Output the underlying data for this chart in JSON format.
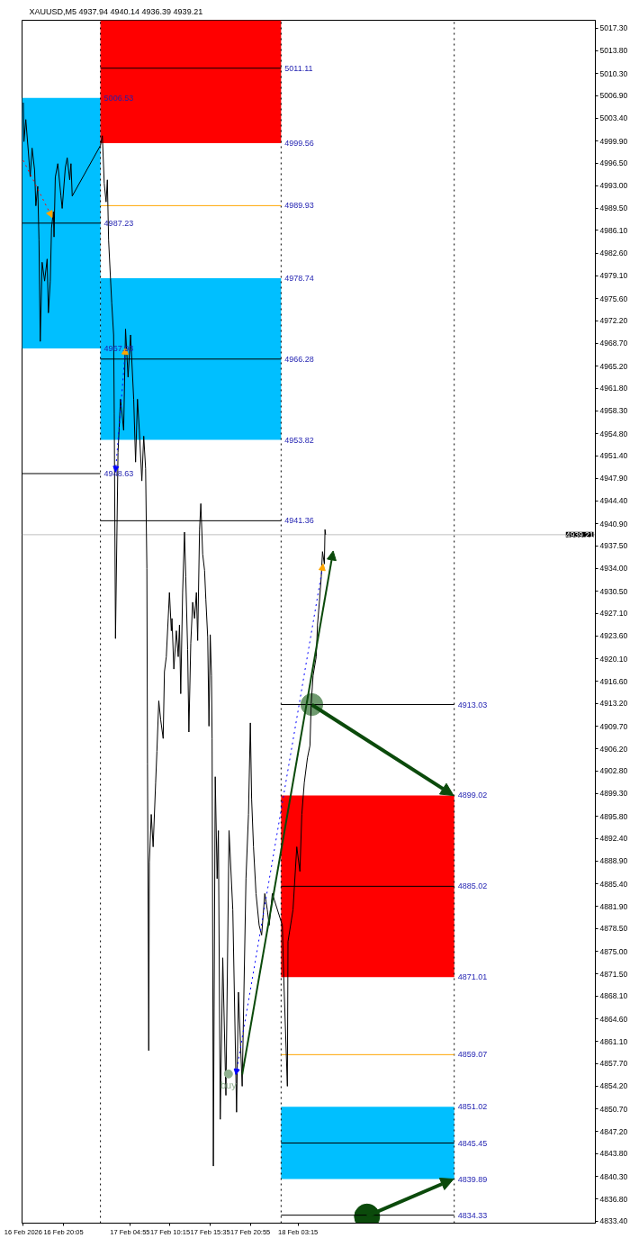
{
  "chart_data": {
    "type": "line",
    "title": "XAUUSD,M5 4937.94 4940.14 4936.39 4939.21",
    "xlim": [
      "2026-02-16T14:35",
      "2026-02-19T18:45"
    ],
    "ylim": [
      4833.1,
      5018.5
    ],
    "xticks": [
      {
        "value": "2026-02-16T14:45",
        "label": "16 Feb 2026"
      },
      {
        "value": "2026-02-16T20:05",
        "label": "16 Feb 20:05"
      },
      {
        "value": "2026-02-17T04:55",
        "label": "17 Feb 04:55"
      },
      {
        "value": "2026-02-17T10:15",
        "label": "17 Feb 10:15"
      },
      {
        "value": "2026-02-17T15:35",
        "label": "17 Feb 15:35"
      },
      {
        "value": "2026-02-17T20:55",
        "label": "17 Feb 20:55"
      },
      {
        "value": "2026-02-18T03:15",
        "label": "18 Feb 03:15"
      }
    ],
    "yticks": [
      {
        "value": 5017.3,
        "label": "5017.30"
      },
      {
        "value": 5013.8,
        "label": "5013.80"
      },
      {
        "value": 5010.3,
        "label": "5010.30"
      },
      {
        "value": 5006.9,
        "label": "5006.90"
      },
      {
        "value": 5003.4,
        "label": "5003.40"
      },
      {
        "value": 4999.9,
        "label": "4999.90"
      },
      {
        "value": 4996.5,
        "label": "4996.50"
      },
      {
        "value": 4993.0,
        "label": "4993.00"
      },
      {
        "value": 4989.5,
        "label": "4989.50"
      },
      {
        "value": 4986.1,
        "label": "4986.10"
      },
      {
        "value": 4982.6,
        "label": "4982.60"
      },
      {
        "value": 4979.1,
        "label": "4979.10"
      },
      {
        "value": 4975.6,
        "label": "4975.60"
      },
      {
        "value": 4972.2,
        "label": "4972.20"
      },
      {
        "value": 4968.7,
        "label": "4968.70"
      },
      {
        "value": 4965.2,
        "label": "4965.20"
      },
      {
        "value": 4961.8,
        "label": "4961.80"
      },
      {
        "value": 4958.3,
        "label": "4958.30"
      },
      {
        "value": 4954.8,
        "label": "4954.80"
      },
      {
        "value": 4951.4,
        "label": "4951.40"
      },
      {
        "value": 4947.9,
        "label": "4947.90"
      },
      {
        "value": 4944.4,
        "label": "4944.40"
      },
      {
        "value": 4940.9,
        "label": "4940.90"
      },
      {
        "value": 4937.5,
        "label": "4937.50"
      },
      {
        "value": 4934.0,
        "label": "4934.00"
      },
      {
        "value": 4930.5,
        "label": "4930.50"
      },
      {
        "value": 4927.1,
        "label": "4927.10"
      },
      {
        "value": 4923.6,
        "label": "4923.60"
      },
      {
        "value": 4920.1,
        "label": "4920.10"
      },
      {
        "value": 4916.6,
        "label": "4916.60"
      },
      {
        "value": 4913.2,
        "label": "4913.20"
      },
      {
        "value": 4909.7,
        "label": "4909.70"
      },
      {
        "value": 4906.2,
        "label": "4906.20"
      },
      {
        "value": 4902.8,
        "label": "4902.80"
      },
      {
        "value": 4899.3,
        "label": "4899.30"
      },
      {
        "value": 4895.8,
        "label": "4895.80"
      },
      {
        "value": 4892.4,
        "label": "4892.40"
      },
      {
        "value": 4888.9,
        "label": "4888.90"
      },
      {
        "value": 4885.4,
        "label": "4885.40"
      },
      {
        "value": 4881.9,
        "label": "4881.90"
      },
      {
        "value": 4878.5,
        "label": "4878.50"
      },
      {
        "value": 4875.0,
        "label": "4875.00"
      },
      {
        "value": 4871.5,
        "label": "4871.50"
      },
      {
        "value": 4868.1,
        "label": "4868.10"
      },
      {
        "value": 4864.6,
        "label": "4864.60"
      },
      {
        "value": 4861.1,
        "label": "4861.10"
      },
      {
        "value": 4857.7,
        "label": "4857.70"
      },
      {
        "value": 4854.2,
        "label": "4854.20"
      },
      {
        "value": 4850.7,
        "label": "4850.70"
      },
      {
        "value": 4847.2,
        "label": "4847.20"
      },
      {
        "value": 4843.8,
        "label": "4843.80"
      },
      {
        "value": 4840.3,
        "label": "4840.30"
      },
      {
        "value": 4836.8,
        "label": "4836.80"
      },
      {
        "value": 4833.4,
        "label": "4833.40"
      }
    ],
    "ref_lines": [
      {
        "axis": "x",
        "value": "2026-02-17T01:00",
        "color": "#000000",
        "line_style": "dotted"
      },
      {
        "axis": "x",
        "value": "2026-02-18T01:00",
        "color": "#000000",
        "line_style": "dotted"
      },
      {
        "axis": "x",
        "value": "2026-02-19T00:00",
        "color": "#000000",
        "line_style": "dotted"
      },
      {
        "axis": "y",
        "value": 4939.21,
        "label": "4939.21",
        "color": "#c0c0c0"
      }
    ],
    "annotations": [
      {
        "text": "5006.53",
        "x": "2026-02-17T01:00",
        "y": 5006.53
      },
      {
        "text": "4967.93",
        "x": "2026-02-17T01:00",
        "y": 4967.93
      },
      {
        "text": "4999.56",
        "x": "2026-02-18T01:00",
        "y": 4999.56
      },
      {
        "text": "4978.74",
        "x": "2026-02-18T01:00",
        "y": 4978.74
      },
      {
        "text": "4953.82",
        "x": "2026-02-18T01:00",
        "y": 4953.82
      },
      {
        "text": "4899.02",
        "x": "2026-02-19T00:00",
        "y": 4899.02
      },
      {
        "text": "4871.01",
        "x": "2026-02-19T00:00",
        "y": 4871.01
      },
      {
        "text": "4851.02",
        "x": "2026-02-19T00:00",
        "y": 4851.02
      },
      {
        "text": "4839.89",
        "x": "2026-02-19T00:00",
        "y": 4839.89
      }
    ],
    "series": [
      {
        "type": "line",
        "color": "#000000",
        "colors": [
          "#00bfff",
          "#00bfff"
        ],
        "x": [
          "2026-02-16T14:35",
          "2026-02-17T01:00"
        ],
        "values": [
          4987.23,
          4987.23
        ],
        "lower": [
          4967.93,
          4967.93
        ],
        "upper": [
          5006.53,
          5006.53
        ],
        "value_labels": [
          null,
          "4987.23"
        ]
      },
      {
        "type": "line",
        "color": "#000000",
        "colors": [
          "#ff0000",
          "#ff0000"
        ],
        "x": [
          "2026-02-17T01:00",
          "2026-02-18T01:00"
        ],
        "values": [
          5011.11,
          5011.11
        ],
        "lower": [
          4999.56,
          4999.56
        ],
        "upper": [
          5018.5,
          5018.5
        ],
        "value_labels": [
          null,
          "5011.11"
        ]
      },
      {
        "type": "line",
        "color": "#000000",
        "colors": [
          "#00bfff",
          "#00bfff"
        ],
        "x": [
          "2026-02-17T01:00",
          "2026-02-18T01:00"
        ],
        "values": [
          4966.28,
          4966.28
        ],
        "lower": [
          4953.82,
          4953.82
        ],
        "upper": [
          4978.74,
          4978.74
        ],
        "value_labels": [
          null,
          "4966.28"
        ]
      },
      {
        "type": "line",
        "color": "#000000",
        "colors": [
          "#ff0000",
          "#ff0000"
        ],
        "x": [
          "2026-02-18T01:00",
          "2026-02-19T00:00"
        ],
        "values": [
          4885.02,
          4885.02
        ],
        "lower": [
          4871.01,
          4871.01
        ],
        "upper": [
          4899.02,
          4899.02
        ],
        "value_labels": [
          null,
          "4885.02"
        ]
      },
      {
        "type": "line",
        "color": "#000000",
        "colors": [
          "#00bfff",
          "#00bfff"
        ],
        "x": [
          "2026-02-18T01:00",
          "2026-02-19T00:00"
        ],
        "values": [
          4845.45,
          4845.45
        ],
        "lower": [
          4839.89,
          4839.89
        ],
        "upper": [
          4851.02,
          4851.02
        ],
        "value_labels": [
          null,
          "4845.45"
        ]
      },
      {
        "type": "bubble",
        "colors": [
          "#6f9a6f",
          "#0b4a0b"
        ],
        "x": [
          "2026-02-18T05:05",
          "2026-02-18T12:25"
        ],
        "values": [
          4913.03,
          4834.1
        ],
        "sizes": [
          0.75,
          1
        ]
      },
      {
        "type": "line",
        "color": "#000000",
        "x": [
          "2026-02-16T14:35",
          "2026-02-17T01:00"
        ],
        "values": [
          4948.63,
          4948.63
        ],
        "value_labels": [
          null,
          "4948.63"
        ]
      },
      {
        "type": "line",
        "color": "#ffa500",
        "x": [
          "2026-02-17T01:00",
          "2026-02-18T01:00"
        ],
        "values": [
          4989.93,
          4989.93
        ],
        "value_labels": [
          null,
          "4989.93"
        ]
      },
      {
        "type": "line",
        "color": "#000000",
        "x": [
          "2026-02-17T01:00",
          "2026-02-18T01:00"
        ],
        "values": [
          4941.36,
          4941.36
        ],
        "value_labels": [
          null,
          "4941.36"
        ]
      },
      {
        "type": "line",
        "color": "#000000",
        "x": [
          "2026-02-18T01:00",
          "2026-02-19T00:00"
        ],
        "values": [
          4913.03,
          4913.03
        ],
        "value_labels": [
          null,
          "4913.03"
        ]
      },
      {
        "type": "line",
        "color": "#ffa500",
        "x": [
          "2026-02-18T01:00",
          "2026-02-19T00:00"
        ],
        "values": [
          4859.07,
          4859.07
        ],
        "value_labels": [
          null,
          "4859.07"
        ]
      },
      {
        "type": "line",
        "color": "#000000",
        "x": [
          "2026-02-18T01:00",
          "2026-02-19T00:00"
        ],
        "values": [
          4834.33,
          4834.33
        ],
        "value_labels": [
          null,
          "4834.33"
        ]
      },
      {
        "color": "#000000",
        "x": [
          "2026-02-16T14:45",
          "2026-02-16T14:50",
          "2026-02-16T15:05",
          "2026-02-16T15:25",
          "2026-02-16T15:40",
          "2026-02-16T15:55",
          "2026-02-16T16:15",
          "2026-02-16T16:25",
          "2026-02-16T16:40",
          "2026-02-16T16:50",
          "2026-02-16T17:00",
          "2026-02-16T17:15",
          "2026-02-16T17:35",
          "2026-02-16T17:55",
          "2026-02-16T18:05",
          "2026-02-16T18:20",
          "2026-02-16T18:30",
          "2026-02-16T18:45",
          "2026-02-16T18:50",
          "2026-02-16T19:00",
          "2026-02-16T19:20",
          "2026-02-16T19:45",
          "2026-02-16T19:55",
          "2026-02-16T20:20",
          "2026-02-16T20:35",
          "2026-02-16T20:55",
          "2026-02-16T21:05",
          "2026-02-16T21:15",
          "2026-02-17T01:00",
          "2026-02-17T01:15",
          "2026-02-17T01:30",
          "2026-02-17T01:45",
          "2026-02-17T01:55",
          "2026-02-17T02:05",
          "2026-02-17T02:20",
          "2026-02-17T02:30",
          "2026-02-17T02:45",
          "2026-02-17T02:50",
          "2026-02-17T03:00",
          "2026-02-17T03:20",
          "2026-02-17T03:40",
          "2026-02-17T04:05",
          "2026-02-17T04:20",
          "2026-02-17T04:40",
          "2026-02-17T05:00",
          "2026-02-17T05:25",
          "2026-02-17T05:40",
          "2026-02-17T05:55",
          "2026-02-17T06:10",
          "2026-02-17T06:30",
          "2026-02-17T06:45",
          "2026-02-17T07:00",
          "2026-02-17T07:10",
          "2026-02-17T07:15",
          "2026-02-17T07:25",
          "2026-02-17T07:30",
          "2026-02-17T07:45",
          "2026-02-17T08:00",
          "2026-02-17T08:20",
          "2026-02-17T08:30",
          "2026-02-17T08:45",
          "2026-02-17T09:00",
          "2026-02-17T09:20",
          "2026-02-17T09:30",
          "2026-02-17T09:45",
          "2026-02-17T10:00",
          "2026-02-17T10:10",
          "2026-02-17T10:25",
          "2026-02-17T10:30",
          "2026-02-17T10:45",
          "2026-02-17T11:05",
          "2026-02-17T11:20",
          "2026-02-17T11:30",
          "2026-02-17T11:40",
          "2026-02-17T11:55",
          "2026-02-17T12:10",
          "2026-02-17T12:20",
          "2026-02-17T12:35",
          "2026-02-17T12:45",
          "2026-02-17T13:00",
          "2026-02-17T13:15",
          "2026-02-17T13:30",
          "2026-02-17T13:45",
          "2026-02-17T13:55",
          "2026-02-17T14:10",
          "2026-02-17T14:20",
          "2026-02-17T14:35",
          "2026-02-17T14:50",
          "2026-02-17T15:00",
          "2026-02-17T15:15",
          "2026-02-17T15:25",
          "2026-02-17T15:35",
          "2026-02-17T15:45",
          "2026-02-17T15:50",
          "2026-02-17T16:00",
          "2026-02-17T16:15",
          "2026-02-17T16:30",
          "2026-02-17T16:40",
          "2026-02-17T16:55",
          "2026-02-17T17:15",
          "2026-02-17T17:40",
          "2026-02-17T18:05",
          "2026-02-17T18:35",
          "2026-02-17T19:05",
          "2026-02-17T19:20",
          "2026-02-17T19:50",
          "2026-02-17T20:20",
          "2026-02-17T20:40",
          "2026-02-17T20:55",
          "2026-02-17T21:05",
          "2026-02-17T21:20",
          "2026-02-17T21:40",
          "2026-02-17T22:05",
          "2026-02-17T22:25",
          "2026-02-17T22:50",
          "2026-02-17T23:10",
          "2026-02-17T23:25",
          "2026-02-17T23:50",
          "2026-02-18T01:10",
          "2026-02-18T01:20",
          "2026-02-18T01:50",
          "2026-02-18T01:55",
          "2026-02-18T02:35",
          "2026-02-18T03:05",
          "2026-02-18T03:30",
          "2026-02-18T03:45",
          "2026-02-18T04:05",
          "2026-02-18T04:30",
          "2026-02-18T04:50",
          "2026-02-18T05:00",
          "2026-02-18T05:15",
          "2026-02-18T05:40",
          "2026-02-18T05:50",
          "2026-02-18T06:05",
          "2026-02-18T06:20",
          "2026-02-18T06:30",
          "2026-02-18T06:45",
          "2026-02-18T06:50",
          "2026-02-18T06:55"
        ],
        "values": [
          5005.8,
          4999.8,
          5003.2,
          4998.3,
          4994.4,
          4998.8,
          4995.4,
          4989.9,
          4992.9,
          4984.6,
          4969.0,
          4981.2,
          4978.3,
          4981.7,
          4973.4,
          4978.3,
          4986.5,
          4989.0,
          4985.1,
          4994.3,
          4996.4,
          4991.4,
          4989.5,
          4995.8,
          4997.3,
          4993.9,
          4996.4,
          4991.4,
          4999.2,
          5000.7,
          4993.4,
          4990.5,
          4993.9,
          4984.6,
          4978.7,
          4974.9,
          4970.0,
          4957.8,
          4923.2,
          4951.9,
          4960.1,
          4955.3,
          4970.9,
          4963.5,
          4970.0,
          4960.1,
          4950.4,
          4960.1,
          4955.3,
          4947.5,
          4954.4,
          4949.4,
          4934.0,
          4903.9,
          4859.7,
          4888.7,
          4896.1,
          4891.1,
          4901.0,
          4905.8,
          4913.6,
          4910.7,
          4907.8,
          4918.1,
          4920.4,
          4926.3,
          4930.3,
          4924.4,
          4926.3,
          4918.5,
          4924.4,
          4920.4,
          4925.3,
          4914.7,
          4930.3,
          4939.6,
          4932.7,
          4921.5,
          4908.8,
          4922.5,
          4928.8,
          4926.3,
          4930.3,
          4922.9,
          4940.0,
          4944.0,
          4936.2,
          4933.7,
          4929.3,
          4923.4,
          4909.7,
          4923.8,
          4917.5,
          4907.8,
          4841.9,
          4901.9,
          4886.2,
          4893.6,
          4849.1,
          4874.0,
          4852.8,
          4893.6,
          4881.4,
          4850.2,
          4868.7,
          4854.2,
          4886.2,
          4896.1,
          4910.2,
          4898.5,
          4891.1,
          4883.9,
          4879.0,
          4877.5,
          4883.9,
          4881.4,
          4879.0,
          4883.9,
          4879.0,
          4871.6,
          4854.2,
          4876.5,
          4881.4,
          4891.1,
          4887.3,
          4896.1,
          4901.0,
          4904.8,
          4906.7,
          4913.2,
          4917.5,
          4920.4,
          4925.3,
          4928.8,
          4932.7,
          4936.6,
          4934.7,
          4940.0,
          4939.2
        ]
      },
      {
        "type": "scatter",
        "name": "buy",
        "marker": "circle",
        "color": "#8fb08f",
        "x": [
          "2026-02-17T18:00"
        ],
        "values": [
          4856.1
        ]
      }
    ]
  }
}
